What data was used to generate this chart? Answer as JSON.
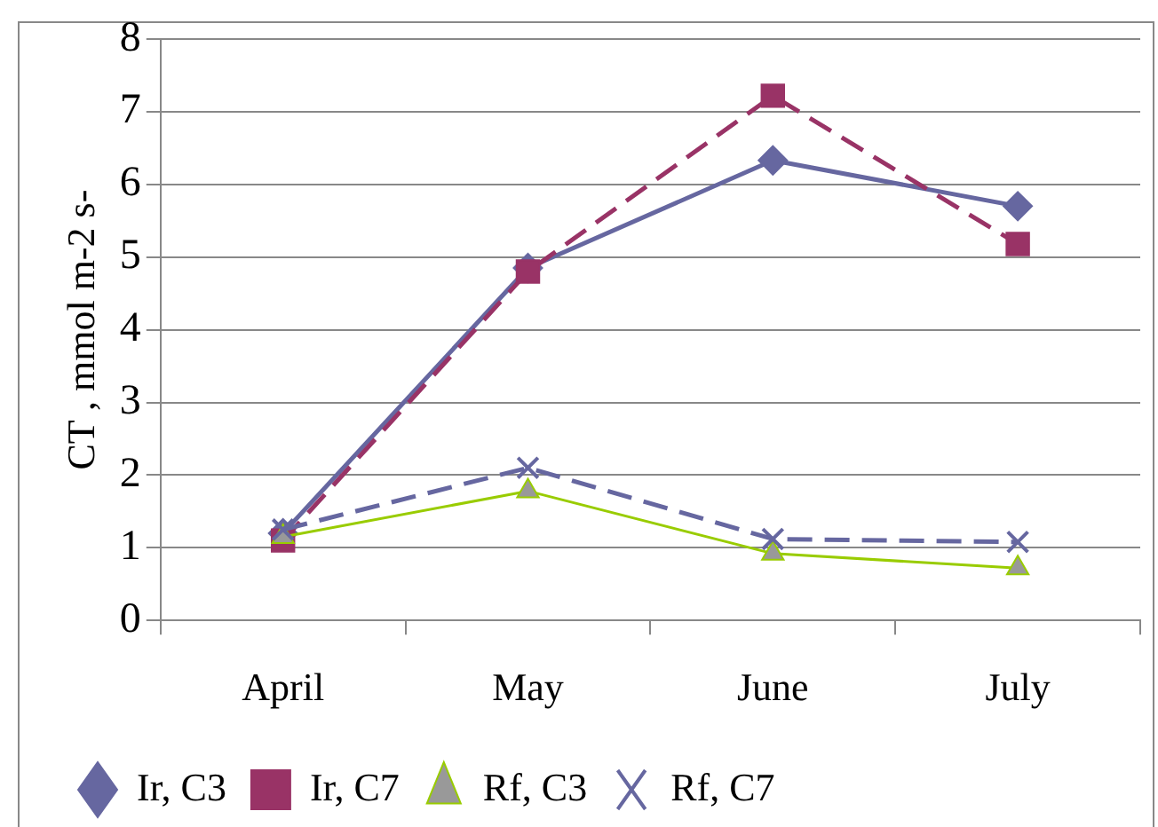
{
  "chart_data": {
    "type": "line",
    "ylabel": "CT , mmol m-2 s-",
    "categories": [
      "April",
      "May",
      "June",
      "July"
    ],
    "series": [
      {
        "name": "Ir, C3",
        "color": "#6667a0",
        "marker": "diamond",
        "line_style": "solid",
        "values": [
          1.2,
          4.85,
          6.33,
          5.7
        ]
      },
      {
        "name": "Ir, C7",
        "color": "#993366",
        "marker": "square",
        "line_style": "dashed",
        "values": [
          1.1,
          4.8,
          7.22,
          5.18
        ]
      },
      {
        "name": "Rf, C3",
        "color": "#99cc00",
        "marker": "triangle",
        "line_style": "solid",
        "values": [
          1.15,
          1.78,
          0.92,
          0.72
        ]
      },
      {
        "name": "Rf, C7",
        "color": "#6667a0",
        "marker": "cross",
        "line_style": "dashed",
        "values": [
          1.25,
          2.1,
          1.12,
          1.08
        ]
      }
    ],
    "ylim": [
      0,
      8
    ],
    "yticks": [
      0,
      1,
      2,
      3,
      4,
      5,
      6,
      7,
      8
    ],
    "grid": "y",
    "legend": "bottom"
  }
}
